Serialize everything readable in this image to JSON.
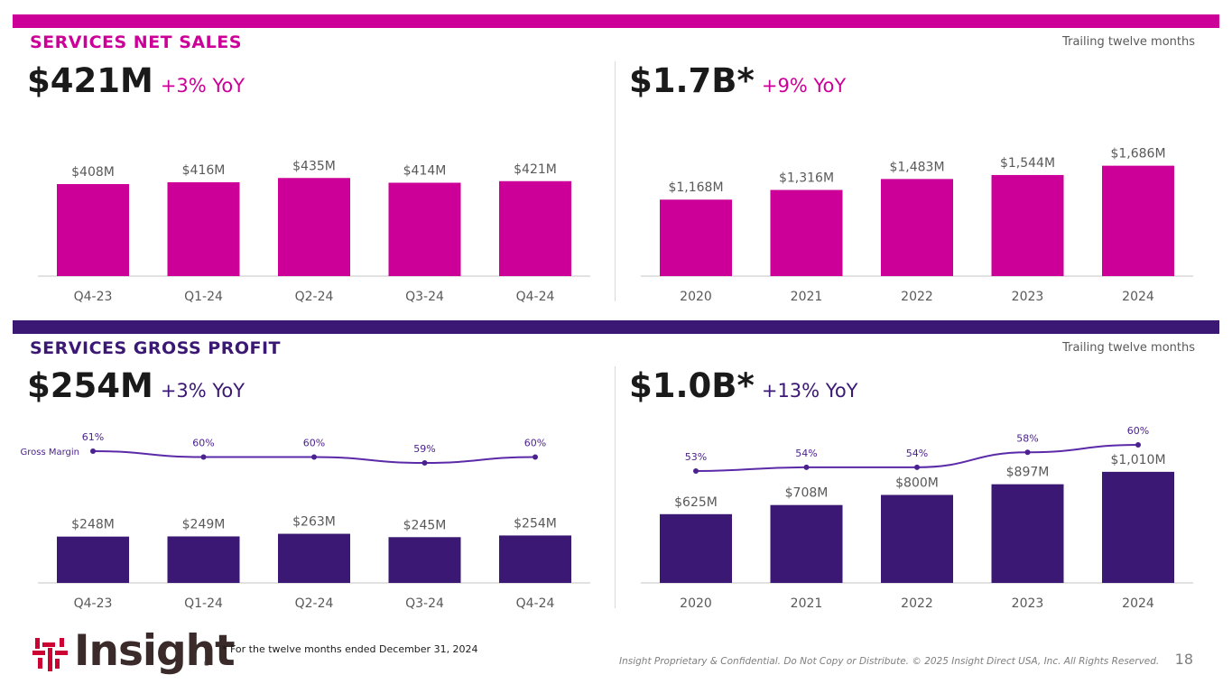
{
  "colors": {
    "magenta": "#cc0099",
    "purple": "#3a1873",
    "gm_line": "#5b2aa8",
    "gm_dot": "#4b2190",
    "axis": "#d9d9d9",
    "text": "#595959"
  },
  "net_sales": {
    "title": "SERVICES NET SALES",
    "ttm_label": "Trailing twelve months",
    "quarter_kpi": {
      "value": "$421M",
      "yoy": "+3% YoY"
    },
    "annual_kpi": {
      "value": "$1.7B*",
      "yoy": "+9% YoY"
    }
  },
  "gross_profit": {
    "title": "SERVICES GROSS PROFIT",
    "ttm_label": "Trailing twelve months",
    "quarter_kpi": {
      "value": "$254M",
      "yoy": "+3% YoY"
    },
    "annual_kpi": {
      "value": "$1.0B*",
      "yoy": "+13% YoY"
    }
  },
  "footer": {
    "footnote": "* For the twelve months ended December 31, 2024",
    "legal": "Insight Proprietary & Confidential. Do Not Copy or Distribute. © 2025 Insight Direct USA, Inc. All Rights Reserved.",
    "page_number": "18",
    "logo_text": "Insight",
    "logo_reg": "®"
  },
  "chart_data": [
    {
      "id": "ns_quarterly",
      "type": "bar",
      "color": "magenta",
      "categories": [
        "Q4-23",
        "Q1-24",
        "Q2-24",
        "Q3-24",
        "Q4-24"
      ],
      "values": [
        408,
        416,
        435,
        414,
        421
      ],
      "labels": [
        "$408M",
        "$416M",
        "$435M",
        "$414M",
        "$421M"
      ],
      "ylim": [
        0,
        500
      ]
    },
    {
      "id": "ns_annual",
      "type": "bar",
      "color": "magenta",
      "categories": [
        "2020",
        "2021",
        "2022",
        "2023",
        "2024"
      ],
      "values": [
        1168,
        1316,
        1483,
        1544,
        1686
      ],
      "labels": [
        "$1,168M",
        "$1,316M",
        "$1,483M",
        "$1,544M",
        "$1,686M"
      ],
      "ylim": [
        0,
        1750
      ]
    },
    {
      "id": "gp_quarterly",
      "type": "bar",
      "color": "purple",
      "categories": [
        "Q4-23",
        "Q1-24",
        "Q2-24",
        "Q3-24",
        "Q4-24"
      ],
      "values": [
        248,
        249,
        263,
        245,
        254
      ],
      "labels": [
        "$248M",
        "$249M",
        "$263M",
        "$245M",
        "$254M"
      ],
      "ylim": [
        0,
        1000
      ],
      "line": {
        "name": "Gross Margin",
        "values": [
          61,
          60,
          60,
          59,
          60
        ],
        "labels": [
          "61%",
          "60%",
          "60%",
          "59%",
          "60%"
        ]
      }
    },
    {
      "id": "gp_annual",
      "type": "bar",
      "color": "purple",
      "categories": [
        "2020",
        "2021",
        "2022",
        "2023",
        "2024"
      ],
      "values": [
        625,
        708,
        800,
        897,
        1010
      ],
      "labels": [
        "$625M",
        "$708M",
        "$800M",
        "$897M",
        "$1,010M"
      ],
      "ylim": [
        0,
        1050
      ],
      "line": {
        "values": [
          53,
          54,
          54,
          58,
          60
        ],
        "labels": [
          "53%",
          "54%",
          "54%",
          "58%",
          "60%"
        ]
      }
    }
  ]
}
